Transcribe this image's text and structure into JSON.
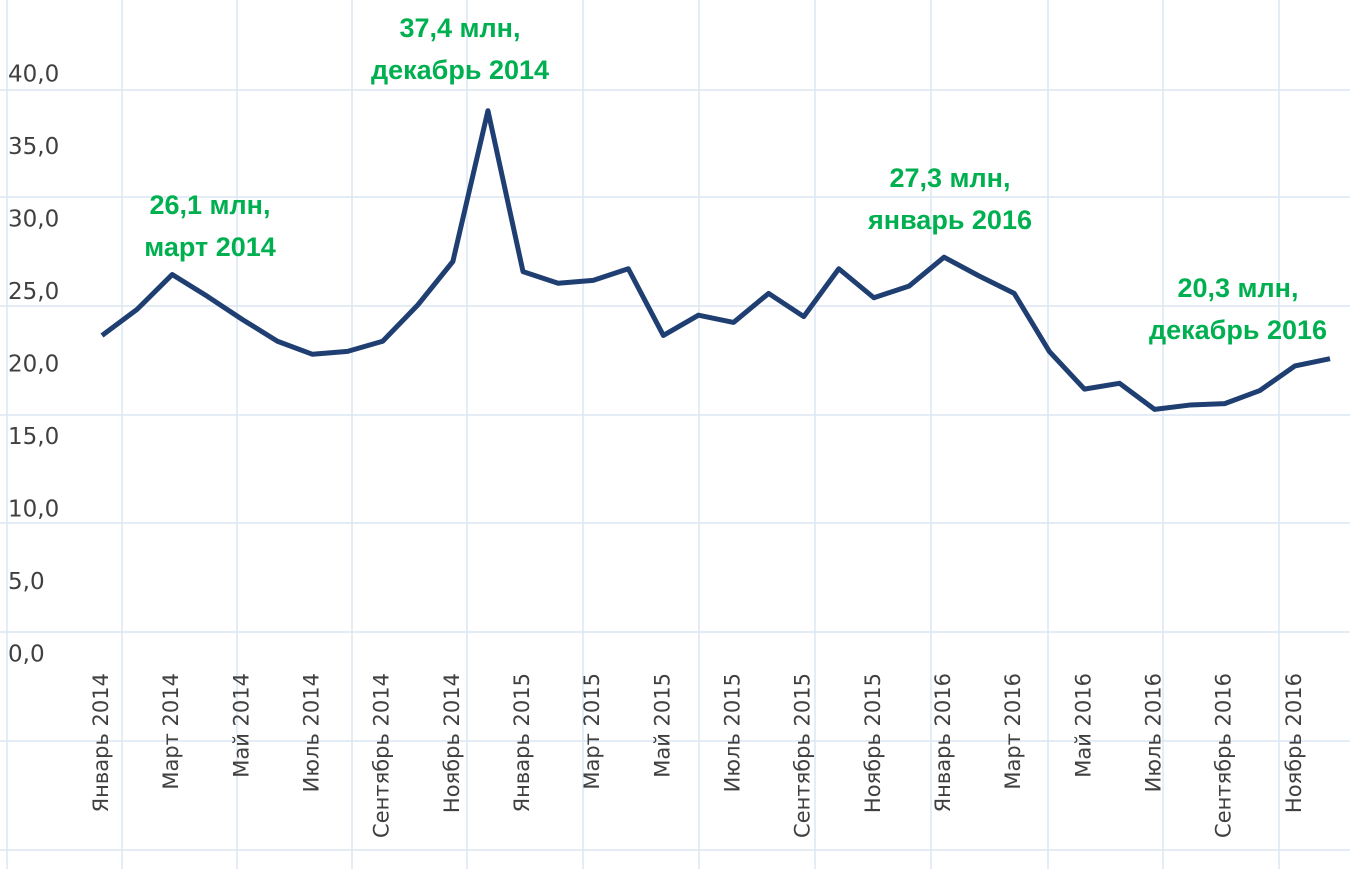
{
  "chart_data": {
    "type": "line",
    "categories": [
      "Январь 2014",
      null,
      "Март 2014",
      null,
      "Май 2014",
      null,
      "Июль 2014",
      null,
      "Сентябрь 2014",
      null,
      "Ноябрь 2014",
      null,
      "Январь 2015",
      null,
      "Март 2015",
      null,
      "Май 2015",
      null,
      "Июль 2015",
      null,
      "Сентябрь 2015",
      null,
      "Ноябрь 2015",
      null,
      "Январь 2016",
      null,
      "Март 2016",
      null,
      "Май 2016",
      null,
      "Июль 2016",
      null,
      "Сентябрь 2016",
      null,
      "Ноябрь 2016",
      null
    ],
    "series": [
      {
        "color": "#1f3f72",
        "values": [
          21.9,
          23.7,
          26.1,
          24.6,
          23.0,
          21.5,
          20.6,
          20.8,
          21.5,
          24.0,
          27.0,
          37.4,
          26.3,
          25.5,
          25.7,
          26.5,
          21.9,
          23.3,
          22.8,
          24.8,
          23.2,
          26.5,
          24.5,
          25.3,
          27.3,
          26.0,
          24.8,
          20.8,
          18.2,
          18.6,
          16.8,
          17.1,
          17.2,
          18.1,
          19.8,
          20.3
        ]
      }
    ],
    "ylim": [
      0,
      40
    ],
    "yticks": [
      {
        "value": 0,
        "label": "0,0"
      },
      {
        "value": 5,
        "label": "5,0"
      },
      {
        "value": 10,
        "label": "10,0"
      },
      {
        "value": 15,
        "label": "15,0"
      },
      {
        "value": 20,
        "label": "20,0"
      },
      {
        "value": 25,
        "label": "25,0"
      },
      {
        "value": 30,
        "label": "30,0"
      },
      {
        "value": 35,
        "label": "35,0"
      },
      {
        "value": 40,
        "label": "40,0"
      }
    ],
    "grid": false,
    "annotations": [
      {
        "lines": [
          "26,1 млн,",
          "март 2014"
        ]
      },
      {
        "lines": [
          "37,4 млн,",
          "декабрь 2014"
        ]
      },
      {
        "lines": [
          "27,3 млн,",
          "январь 2016"
        ]
      },
      {
        "lines": [
          "20,3 млн,",
          "декабрь 2016"
        ]
      }
    ]
  }
}
